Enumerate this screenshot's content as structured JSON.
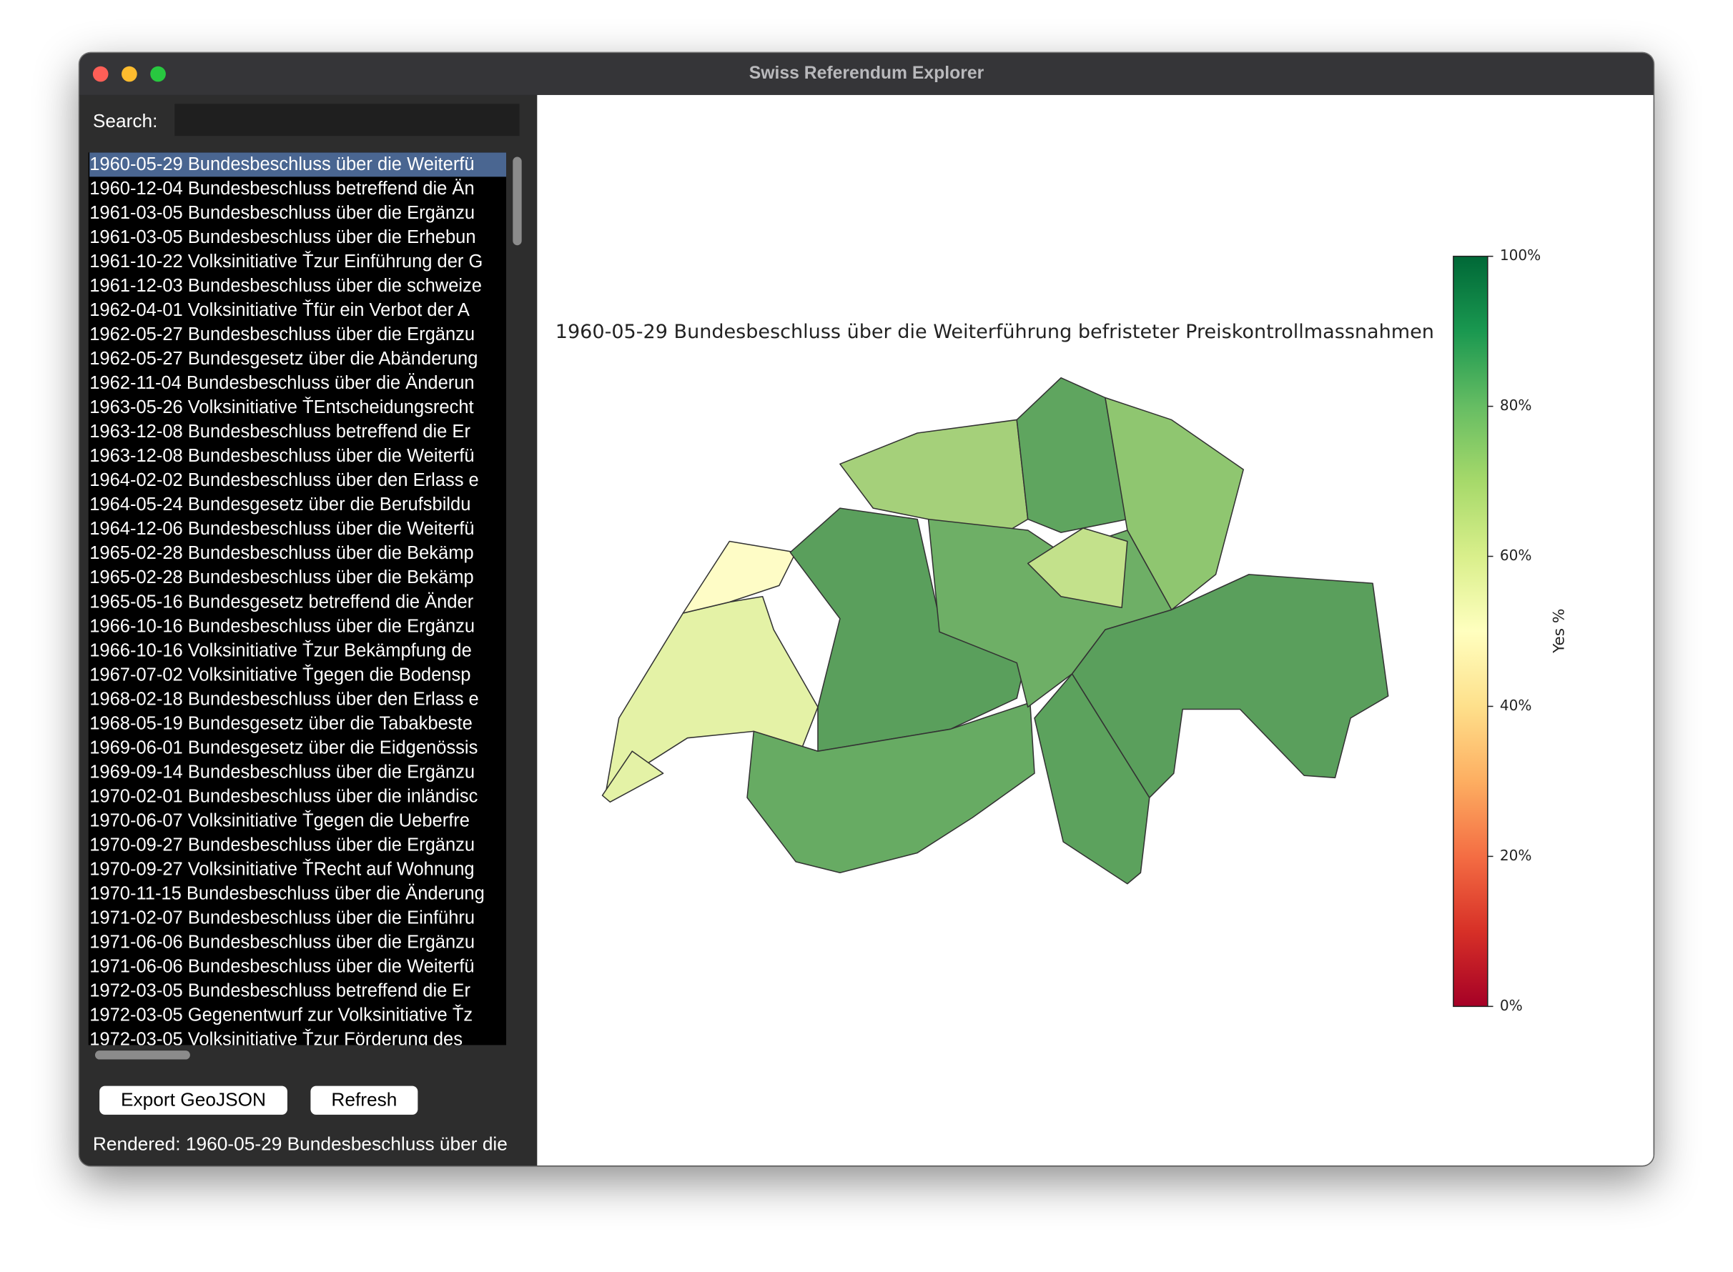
{
  "window": {
    "title": "Swiss Referendum Explorer"
  },
  "sidebar": {
    "search_label": "Search:",
    "list": [
      "1960-05-29 Bundesbeschluss über die Weiterfü",
      "1960-12-04 Bundesbeschluss betreffend die Än",
      "1961-03-05 Bundesbeschluss über die Ergänzu",
      "1961-03-05 Bundesbeschluss über die Erhebun",
      "1961-10-22 Volksinitiative Ťzur Einführung der G",
      "1961-12-03 Bundesbeschluss über die schweize",
      "1962-04-01 Volksinitiative Ťfür ein Verbot der A",
      "1962-05-27 Bundesbeschluss über die Ergänzu",
      "1962-05-27 Bundesgesetz über die Abänderung",
      "1962-11-04 Bundesbeschluss über die Änderun",
      "1963-05-26 Volksinitiative ŤEntscheidungsrecht",
      "1963-12-08 Bundesbeschluss betreffend die Er",
      "1963-12-08 Bundesbeschluss über die Weiterfü",
      "1964-02-02 Bundesbeschluss über den Erlass e",
      "1964-05-24 Bundesgesetz über die Berufsbildu",
      "1964-12-06 Bundesbeschluss über die Weiterfü",
      "1965-02-28 Bundesbeschluss über die Bekämp",
      "1965-02-28 Bundesbeschluss über die Bekämp",
      "1965-05-16 Bundesgesetz betreffend die Änder",
      "1966-10-16 Bundesbeschluss über die Ergänzu",
      "1966-10-16 Volksinitiative Ťzur Bekämpfung de",
      "1967-07-02 Volksinitiative Ťgegen die Bodensp",
      "1968-02-18 Bundesbeschluss über den Erlass e",
      "1968-05-19 Bundesgesetz über die Tabakbeste",
      "1969-06-01 Bundesgesetz über die Eidgenössis",
      "1969-09-14 Bundesbeschluss über die Ergänzu",
      "1970-02-01 Bundesbeschluss über die inländisc",
      "1970-06-07 Volksinitiative Ťgegen die Ueberfre",
      "1970-09-27 Bundesbeschluss über die Ergänzu",
      "1970-09-27 Volksinitiative ŤRecht auf Wohnung",
      "1970-11-15 Bundesbeschluss über die Änderung",
      "1971-02-07 Bundesbeschluss über die Einführu",
      "1971-06-06 Bundesbeschluss über die Ergänzu",
      "1971-06-06 Bundesbeschluss über die Weiterfü",
      "1972-03-05 Bundesbeschluss betreffend die Er",
      "1972-03-05 Gegenentwurf zur Volksinitiative Ťz",
      "1972-03-05 Volksinitiative Ťzur Förderung des"
    ],
    "buttons": [
      "Export GeoJSON",
      "Refresh"
    ],
    "status": "Rendered: 1960-05-29 Bundesbeschluss über die"
  },
  "map": {
    "title": "1960-05-29 Bundesbeschluss über die Weiterführung befristeter Preiskontrollmassnahmen",
    "colorbar": {
      "label": "Yes %",
      "lim": [
        0,
        100
      ],
      "ticks": [
        {
          "value": 0,
          "label": "0%"
        },
        {
          "value": 20,
          "label": "20%"
        },
        {
          "value": 40,
          "label": "40%"
        },
        {
          "value": 60,
          "label": "60%"
        },
        {
          "value": 80,
          "label": "80%"
        },
        {
          "value": 100,
          "label": "100%"
        }
      ]
    }
  }
}
